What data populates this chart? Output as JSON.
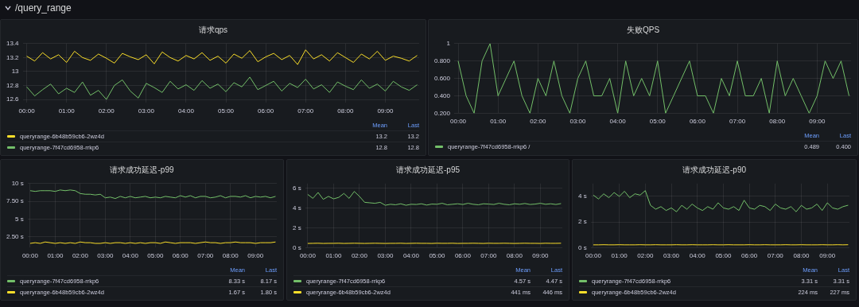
{
  "chart_data": [
    {
      "type": "other",
      "title": "/query_range"
    },
    {
      "type": "line",
      "title": "请求qps",
      "x": [
        0,
        0.2,
        0.4,
        0.6,
        0.8,
        1,
        1.2,
        1.4,
        1.6,
        1.8,
        2,
        2.2,
        2.4,
        2.6,
        2.8,
        3,
        3.2,
        3.4,
        3.6,
        3.8,
        4,
        4.2,
        4.4,
        4.6,
        4.8,
        5,
        5.2,
        5.4,
        5.6,
        5.8,
        6,
        6.2,
        6.4,
        6.6,
        6.8,
        7,
        7.2,
        7.4,
        7.6,
        7.8,
        8,
        8.2,
        8.4,
        8.6,
        8.8,
        9,
        9.2,
        9.4,
        9.6,
        9.8
      ],
      "xlim": [
        -0.1,
        9.85
      ],
      "xticks": [
        {
          "value": 0,
          "label": "00:00"
        },
        {
          "value": 1,
          "label": "01:00"
        },
        {
          "value": 2,
          "label": "02:00"
        },
        {
          "value": 3,
          "label": "03:00"
        },
        {
          "value": 4,
          "label": "04:00"
        },
        {
          "value": 5,
          "label": "05:00"
        },
        {
          "value": 6,
          "label": "06:00"
        },
        {
          "value": 7,
          "label": "07:00"
        },
        {
          "value": 8,
          "label": "08:00"
        },
        {
          "value": 9,
          "label": "09:00"
        }
      ],
      "ylim": [
        12.55,
        13.4
      ],
      "yticks": [
        12.6,
        12.8,
        13,
        13.2,
        13.4
      ],
      "grid": true,
      "legend": "bottom",
      "line_style": "solid",
      "annotations": [
        "Mean",
        "Last",
        "13.2",
        "13.2",
        "12.8",
        "12.8"
      ],
      "series": [
        {
          "name": "queryrange-6b48b59cb6-2wz4d",
          "color": "#fade2a",
          "values": [
            13.22,
            13.15,
            13.27,
            13.18,
            13.24,
            13.13,
            13.29,
            13.2,
            13.16,
            13.25,
            13.19,
            13.12,
            13.26,
            13.21,
            13.17,
            13.24,
            13.11,
            13.28,
            13.2,
            13.15,
            13.23,
            13.18,
            13.27,
            13.16,
            13.22,
            13.12,
            13.25,
            13.19,
            13.3,
            13.14,
            13.21,
            13.26,
            13.17,
            13.23,
            13.1,
            13.31,
            13.18,
            13.24,
            13.15,
            13.27,
            13.2,
            13.13,
            13.25,
            13.18,
            13.29,
            13.16,
            13.22,
            13.19,
            13.15,
            13.23
          ]
        },
        {
          "name": "queryrange-7f47cd6958-rrkp6",
          "color": "#73bf69",
          "values": [
            12.78,
            12.65,
            12.74,
            12.82,
            12.68,
            12.76,
            12.7,
            12.85,
            12.66,
            12.73,
            12.6,
            12.8,
            12.88,
            12.72,
            12.62,
            12.83,
            12.77,
            12.7,
            12.86,
            12.75,
            12.81,
            12.73,
            12.87,
            12.76,
            12.82,
            12.71,
            12.84,
            12.78,
            12.92,
            12.74,
            12.8,
            12.86,
            12.72,
            12.83,
            12.77,
            12.89,
            12.75,
            12.81,
            12.7,
            12.85,
            12.79,
            12.74,
            12.88,
            12.76,
            12.82,
            12.72,
            12.86,
            12.78,
            12.73,
            12.81
          ]
        }
      ]
    },
    {
      "type": "line",
      "title": "失败QPS",
      "x": [
        0,
        0.2,
        0.4,
        0.6,
        0.8,
        1,
        1.2,
        1.4,
        1.6,
        1.8,
        2,
        2.2,
        2.4,
        2.6,
        2.8,
        3,
        3.2,
        3.4,
        3.6,
        3.8,
        4,
        4.2,
        4.4,
        4.6,
        4.8,
        5,
        5.2,
        5.4,
        5.6,
        5.8,
        6,
        6.2,
        6.4,
        6.6,
        6.8,
        7,
        7.2,
        7.4,
        7.6,
        7.8,
        8,
        8.2,
        8.4,
        8.6,
        8.8,
        9,
        9.2,
        9.4,
        9.6,
        9.8
      ],
      "xlim": [
        -0.1,
        9.85
      ],
      "xticks": [
        {
          "value": 0,
          "label": "00:00"
        },
        {
          "value": 1,
          "label": "01:00"
        },
        {
          "value": 2,
          "label": "02:00"
        },
        {
          "value": 3,
          "label": "03:00"
        },
        {
          "value": 4,
          "label": "04:00"
        },
        {
          "value": 5,
          "label": "05:00"
        },
        {
          "value": 6,
          "label": "06:00"
        },
        {
          "value": 7,
          "label": "07:00"
        },
        {
          "value": 8,
          "label": "08:00"
        },
        {
          "value": 9,
          "label": "09:00"
        }
      ],
      "ylim": [
        0.2,
        1
      ],
      "yticks": [
        {
          "value": 0.2,
          "label": "0.200"
        },
        {
          "value": 0.4,
          "label": "0.400"
        },
        {
          "value": 0.6,
          "label": "0.600"
        },
        {
          "value": 0.8,
          "label": "0.800"
        },
        {
          "value": 1,
          "label": "1"
        }
      ],
      "grid": true,
      "legend": "bottom",
      "line_style": "solid",
      "annotations": [
        "Mean",
        "Last",
        "0.489",
        "0.400"
      ],
      "series": [
        {
          "name": "queryrange-7f47cd6958-rrkp6 /",
          "color": "#73bf69",
          "values": [
            0.8,
            0.4,
            0.2,
            0.8,
            1,
            0.4,
            0.6,
            0.8,
            0.4,
            0.2,
            0.6,
            0.4,
            0.8,
            0.4,
            0.2,
            0.6,
            0.8,
            0.4,
            0.4,
            0.6,
            0.2,
            0.8,
            0.4,
            0.6,
            0.4,
            0.8,
            0.2,
            0.4,
            0.6,
            0.8,
            0.4,
            0.4,
            0.2,
            0.6,
            0.4,
            0.8,
            0.4,
            0.4,
            0.6,
            0.2,
            0.8,
            0.4,
            0.6,
            0.4,
            0.2,
            0.4,
            0.8,
            0.6,
            0.8,
            0.4
          ]
        }
      ]
    },
    {
      "type": "line",
      "title": "请求成功延迟-p99",
      "x": [
        0,
        0.2,
        0.4,
        0.6,
        0.8,
        1,
        1.2,
        1.4,
        1.6,
        1.8,
        2,
        2.2,
        2.4,
        2.6,
        2.8,
        3,
        3.2,
        3.4,
        3.6,
        3.8,
        4,
        4.2,
        4.4,
        4.6,
        4.8,
        5,
        5.2,
        5.4,
        5.6,
        5.8,
        6,
        6.2,
        6.4,
        6.6,
        6.8,
        7,
        7.2,
        7.4,
        7.6,
        7.8,
        8,
        8.2,
        8.4,
        8.6,
        8.8,
        9,
        9.2,
        9.4,
        9.6,
        9.8
      ],
      "xlim": [
        -0.1,
        9.85
      ],
      "xticks": [
        {
          "value": 0,
          "label": "00:00"
        },
        {
          "value": 1,
          "label": "01:00"
        },
        {
          "value": 2,
          "label": "02:00"
        },
        {
          "value": 3,
          "label": "03:00"
        },
        {
          "value": 4,
          "label": "04:00"
        },
        {
          "value": 5,
          "label": "05:00"
        },
        {
          "value": 6,
          "label": "06:00"
        },
        {
          "value": 7,
          "label": "07:00"
        },
        {
          "value": 8,
          "label": "08:00"
        },
        {
          "value": 9,
          "label": "09:00"
        }
      ],
      "ylim": [
        1,
        10
      ],
      "yticks": [
        {
          "value": 2.5,
          "label": "2.50 s"
        },
        {
          "value": 5,
          "label": "5 s"
        },
        {
          "value": 7.5,
          "label": "7.50 s"
        },
        {
          "value": 10,
          "label": "10 s"
        }
      ],
      "grid": true,
      "legend": "bottom",
      "line_style": "solid",
      "annotations": [
        "Mean",
        "Last",
        "8.33 s",
        "8.17 s",
        "1.67 s",
        "1.80 s"
      ],
      "series": [
        {
          "name": "queryrange-7f47cd6958-rrkp6",
          "color": "#73bf69",
          "values": [
            9.0,
            8.9,
            9.0,
            9.0,
            9.0,
            8.9,
            9.1,
            9.0,
            9.1,
            9.0,
            8.6,
            8.5,
            8.5,
            8.4,
            8.5,
            8.0,
            8.1,
            7.9,
            8.2,
            8.0,
            8.2,
            8.0,
            8.1,
            8.2,
            8.0,
            8.1,
            8.0,
            8.2,
            8.1,
            8.0,
            8.3,
            8.1,
            8.3,
            8.0,
            8.2,
            8.2,
            8.0,
            8.1,
            8.3,
            8.0,
            8.2,
            8.2,
            8.1,
            8.3,
            8.0,
            8.2,
            8.1,
            8.2,
            8.0,
            8.2
          ]
        },
        {
          "name": "queryrange-6b48b59cb6-2wz4d",
          "color": "#fade2a",
          "values": [
            1.6,
            1.7,
            1.6,
            1.8,
            1.7,
            1.6,
            1.7,
            1.6,
            1.7,
            1.6,
            1.8,
            1.7,
            1.7,
            1.6,
            1.6,
            1.7,
            1.6,
            1.7,
            1.7,
            1.6,
            1.7,
            1.6,
            1.7,
            1.6,
            1.7,
            1.7,
            1.6,
            1.8,
            1.7,
            1.6,
            1.7,
            1.7,
            1.7,
            1.6,
            1.7,
            1.8,
            1.7,
            1.7,
            1.6,
            1.7,
            1.7,
            1.8,
            1.7,
            1.7,
            1.7,
            1.6,
            1.7,
            1.7,
            1.7,
            1.8
          ]
        }
      ]
    },
    {
      "type": "line",
      "title": "请求成功延迟-p95",
      "x": [
        0,
        0.2,
        0.4,
        0.6,
        0.8,
        1,
        1.2,
        1.4,
        1.6,
        1.8,
        2,
        2.2,
        2.4,
        2.6,
        2.8,
        3,
        3.2,
        3.4,
        3.6,
        3.8,
        4,
        4.2,
        4.4,
        4.6,
        4.8,
        5,
        5.2,
        5.4,
        5.6,
        5.8,
        6,
        6.2,
        6.4,
        6.6,
        6.8,
        7,
        7.2,
        7.4,
        7.6,
        7.8,
        8,
        8.2,
        8.4,
        8.6,
        8.8,
        9,
        9.2,
        9.4,
        9.6,
        9.8
      ],
      "xlim": [
        -0.1,
        9.85
      ],
      "xticks": [
        {
          "value": 0,
          "label": "00:00"
        },
        {
          "value": 1,
          "label": "01:00"
        },
        {
          "value": 2,
          "label": "02:00"
        },
        {
          "value": 3,
          "label": "03:00"
        },
        {
          "value": 4,
          "label": "04:00"
        },
        {
          "value": 5,
          "label": "05:00"
        },
        {
          "value": 6,
          "label": "06:00"
        },
        {
          "value": 7,
          "label": "07:00"
        },
        {
          "value": 8,
          "label": "08:00"
        },
        {
          "value": 9,
          "label": "09:00"
        }
      ],
      "ylim": [
        0,
        6.5
      ],
      "yticks": [
        {
          "value": 0,
          "label": "0 s"
        },
        {
          "value": 2,
          "label": "2 s"
        },
        {
          "value": 4,
          "label": "4 s"
        },
        {
          "value": 6,
          "label": "6 s"
        }
      ],
      "grid": true,
      "legend": "bottom",
      "line_style": "solid",
      "annotations": [
        "Mean",
        "Last",
        "4.57 s",
        "4.47 s",
        "441 ms",
        "446 ms"
      ],
      "series": [
        {
          "name": "queryrange-7f47cd6958-rrkp6",
          "color": "#73bf69",
          "values": [
            5.4,
            5.0,
            5.6,
            4.9,
            5.2,
            4.95,
            5.1,
            5.5,
            5.0,
            5.7,
            5.2,
            4.6,
            4.55,
            4.5,
            4.6,
            4.3,
            4.4,
            4.35,
            4.45,
            4.3,
            4.4,
            4.38,
            4.45,
            4.32,
            4.42,
            4.4,
            4.5,
            4.35,
            4.4,
            4.45,
            4.38,
            4.5,
            4.4,
            4.35,
            4.45,
            4.42,
            4.38,
            4.5,
            4.4,
            4.35,
            4.45,
            4.4,
            4.48,
            4.38,
            4.42,
            4.5,
            4.4,
            4.45,
            4.38,
            4.47
          ]
        },
        {
          "name": "queryrange-6b48b59cb6-2wz4d",
          "color": "#fade2a",
          "values": [
            0.43,
            0.44,
            0.45,
            0.43,
            0.44,
            0.44,
            0.45,
            0.43,
            0.44,
            0.45,
            0.44,
            0.43,
            0.44,
            0.45,
            0.44,
            0.43,
            0.44,
            0.44,
            0.45,
            0.43,
            0.44,
            0.45,
            0.44,
            0.44,
            0.43,
            0.45,
            0.44,
            0.44,
            0.45,
            0.43,
            0.44,
            0.44,
            0.45,
            0.44,
            0.43,
            0.45,
            0.44,
            0.44,
            0.45,
            0.44,
            0.43,
            0.44,
            0.45,
            0.44,
            0.44,
            0.43,
            0.45,
            0.44,
            0.44,
            0.45
          ]
        }
      ]
    },
    {
      "type": "line",
      "title": "请求成功延迟-p90",
      "x": [
        0,
        0.2,
        0.4,
        0.6,
        0.8,
        1,
        1.2,
        1.4,
        1.6,
        1.8,
        2,
        2.2,
        2.4,
        2.6,
        2.8,
        3,
        3.2,
        3.4,
        3.6,
        3.8,
        4,
        4.2,
        4.4,
        4.6,
        4.8,
        5,
        5.2,
        5.4,
        5.6,
        5.8,
        6,
        6.2,
        6.4,
        6.6,
        6.8,
        7,
        7.2,
        7.4,
        7.6,
        7.8,
        8,
        8.2,
        8.4,
        8.6,
        8.8,
        9,
        9.2,
        9.4,
        9.6,
        9.8
      ],
      "xlim": [
        -0.1,
        9.85
      ],
      "xticks": [
        {
          "value": 0,
          "label": "00:00"
        },
        {
          "value": 1,
          "label": "01:00"
        },
        {
          "value": 2,
          "label": "02:00"
        },
        {
          "value": 3,
          "label": "03:00"
        },
        {
          "value": 4,
          "label": "04:00"
        },
        {
          "value": 5,
          "label": "05:00"
        },
        {
          "value": 6,
          "label": "06:00"
        },
        {
          "value": 7,
          "label": "07:00"
        },
        {
          "value": 8,
          "label": "08:00"
        },
        {
          "value": 9,
          "label": "09:00"
        }
      ],
      "ylim": [
        0,
        5
      ],
      "yticks": [
        {
          "value": 0,
          "label": "0 s"
        },
        {
          "value": 2,
          "label": "2 s"
        },
        {
          "value": 4,
          "label": "4 s"
        }
      ],
      "grid": true,
      "legend": "bottom",
      "line_style": "solid",
      "annotations": [
        "Mean",
        "Last",
        "3.31 s",
        "3.31 s",
        "224 ms",
        "227 ms"
      ],
      "series": [
        {
          "name": "queryrange-7f47cd6958-rrkp6",
          "color": "#73bf69",
          "values": [
            4.1,
            3.8,
            4.2,
            3.9,
            4.3,
            4.0,
            4.4,
            3.9,
            4.2,
            4.1,
            4.45,
            3.3,
            3.0,
            3.2,
            2.9,
            3.1,
            2.8,
            3.3,
            3.0,
            3.4,
            3.1,
            2.9,
            3.2,
            3.0,
            3.5,
            3.1,
            3.0,
            3.2,
            2.9,
            3.7,
            3.1,
            3.0,
            3.3,
            3.2,
            2.9,
            3.4,
            3.1,
            3.0,
            3.2,
            2.8,
            3.3,
            3.0,
            3.1,
            3.4,
            2.9,
            3.5,
            3.1,
            3.0,
            3.2,
            3.31
          ]
        },
        {
          "name": "queryrange-6b48b59cb6-2wz4d",
          "color": "#fade2a",
          "values": [
            0.22,
            0.22,
            0.23,
            0.22,
            0.22,
            0.23,
            0.22,
            0.22,
            0.22,
            0.23,
            0.22,
            0.22,
            0.23,
            0.22,
            0.22,
            0.22,
            0.23,
            0.22,
            0.22,
            0.23,
            0.22,
            0.22,
            0.22,
            0.23,
            0.22,
            0.22,
            0.23,
            0.22,
            0.22,
            0.22,
            0.23,
            0.22,
            0.22,
            0.23,
            0.22,
            0.22,
            0.22,
            0.23,
            0.22,
            0.22,
            0.23,
            0.22,
            0.22,
            0.22,
            0.23,
            0.22,
            0.22,
            0.23,
            0.22,
            0.23
          ]
        }
      ]
    }
  ]
}
